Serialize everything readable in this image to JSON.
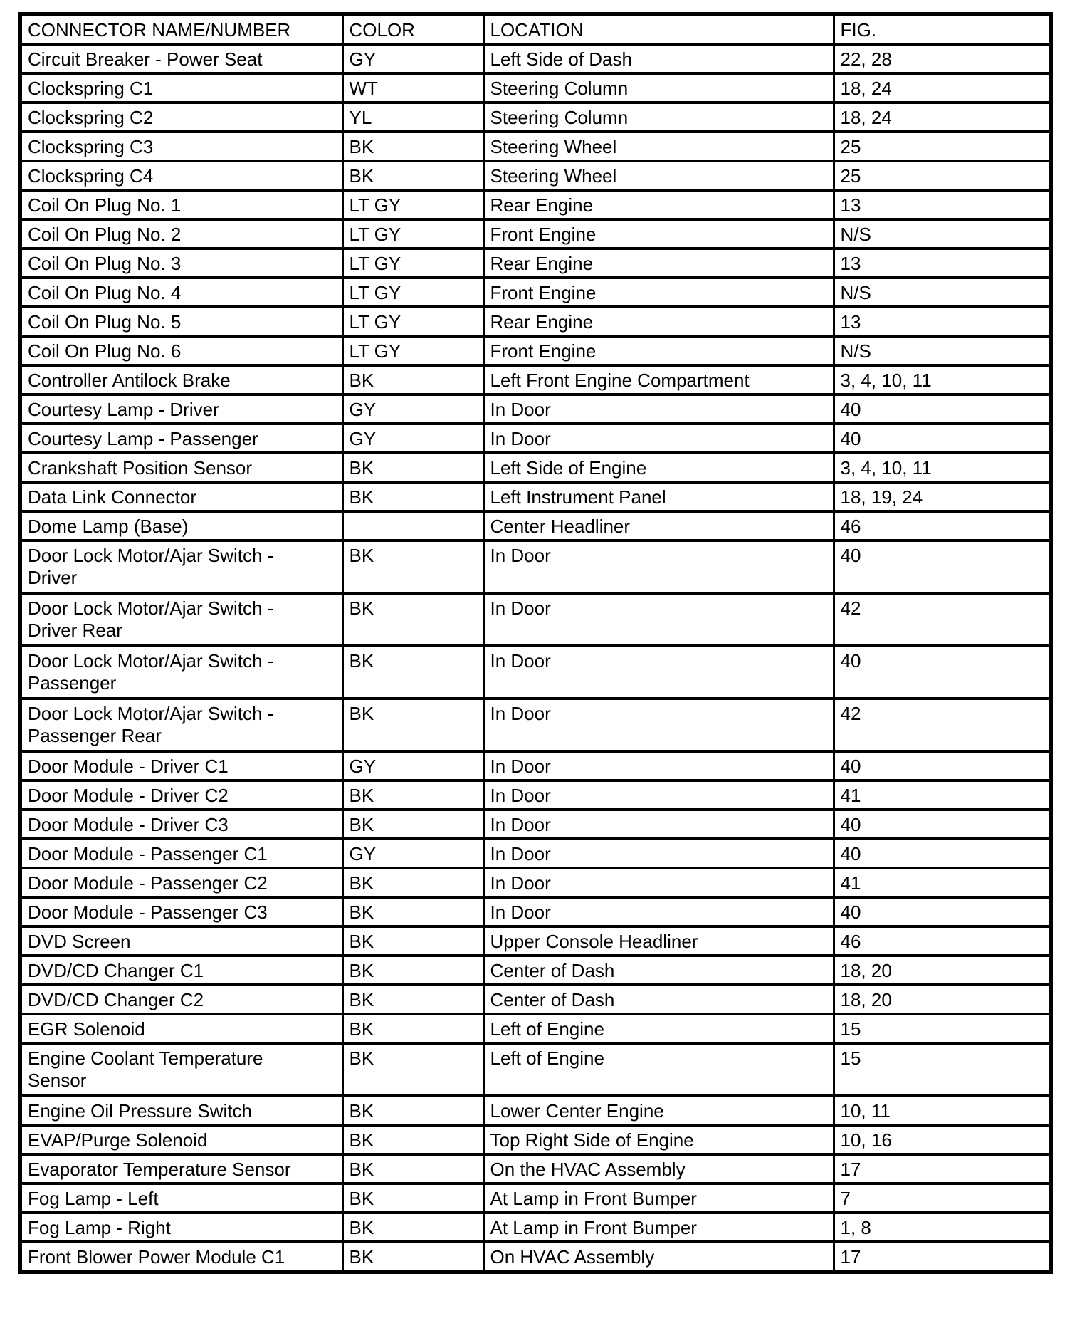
{
  "page": {
    "background_color": "#ffffff",
    "text_color": "#000000",
    "border_color": "#000000"
  },
  "table": {
    "columns": [
      {
        "label": "CONNECTOR NAME/NUMBER"
      },
      {
        "label": "COLOR"
      },
      {
        "label": "LOCATION"
      },
      {
        "label": "FIG."
      }
    ],
    "rows": [
      {
        "name": "Circuit Breaker - Power Seat",
        "color": "GY",
        "location": "Left Side of Dash",
        "fig": "22, 28"
      },
      {
        "name": "Clockspring C1",
        "color": "WT",
        "location": "Steering Column",
        "fig": "18, 24"
      },
      {
        "name": "Clockspring C2",
        "color": "YL",
        "location": "Steering Column",
        "fig": "18, 24"
      },
      {
        "name": "Clockspring C3",
        "color": "BK",
        "location": "Steering Wheel",
        "fig": "25"
      },
      {
        "name": "Clockspring C4",
        "color": "BK",
        "location": "Steering Wheel",
        "fig": "25"
      },
      {
        "name": "Coil On Plug No. 1",
        "color": "LT GY",
        "location": "Rear Engine",
        "fig": "13"
      },
      {
        "name": "Coil On Plug No. 2",
        "color": "LT GY",
        "location": "Front Engine",
        "fig": "N/S"
      },
      {
        "name": "Coil On Plug No. 3",
        "color": "LT GY",
        "location": "Rear Engine",
        "fig": "13"
      },
      {
        "name": "Coil On Plug No. 4",
        "color": "LT GY",
        "location": "Front Engine",
        "fig": "N/S"
      },
      {
        "name": "Coil On Plug No. 5",
        "color": "LT GY",
        "location": "Rear Engine",
        "fig": "13"
      },
      {
        "name": "Coil On Plug No. 6",
        "color": "LT GY",
        "location": "Front Engine",
        "fig": "N/S"
      },
      {
        "name": "Controller Antilock Brake",
        "color": "BK",
        "location": "Left Front Engine Compartment",
        "fig": "3, 4, 10, 11"
      },
      {
        "name": "Courtesy Lamp - Driver",
        "color": "GY",
        "location": "In Door",
        "fig": "40"
      },
      {
        "name": "Courtesy Lamp - Passenger",
        "color": "GY",
        "location": "In Door",
        "fig": "40"
      },
      {
        "name": "Crankshaft Position Sensor",
        "color": "BK",
        "location": "Left Side of Engine",
        "fig": "3, 4, 10, 11"
      },
      {
        "name": "Data Link Connector",
        "color": "BK",
        "location": "Left Instrument Panel",
        "fig": "18, 19, 24"
      },
      {
        "name": "Dome Lamp (Base)",
        "color": "",
        "location": "Center Headliner",
        "fig": "46"
      },
      {
        "name": "Door Lock Motor/Ajar Switch -\nDriver",
        "color": "BK",
        "location": "In Door",
        "fig": "40"
      },
      {
        "name": "Door Lock Motor/Ajar Switch -\nDriver Rear",
        "color": "BK",
        "location": "In Door",
        "fig": "42"
      },
      {
        "name": "Door Lock Motor/Ajar Switch -\nPassenger",
        "color": "BK",
        "location": "In Door",
        "fig": "40"
      },
      {
        "name": "Door Lock Motor/Ajar Switch -\nPassenger Rear",
        "color": "BK",
        "location": "In Door",
        "fig": "42"
      },
      {
        "name": "Door Module - Driver C1",
        "color": "GY",
        "location": "In Door",
        "fig": "40"
      },
      {
        "name": "Door Module - Driver C2",
        "color": "BK",
        "location": "In Door",
        "fig": "41"
      },
      {
        "name": "Door Module - Driver C3",
        "color": "BK",
        "location": "In Door",
        "fig": "40"
      },
      {
        "name": "Door Module - Passenger C1",
        "color": "GY",
        "location": "In Door",
        "fig": "40"
      },
      {
        "name": "Door Module - Passenger C2",
        "color": "BK",
        "location": "In Door",
        "fig": "41"
      },
      {
        "name": "Door Module - Passenger C3",
        "color": "BK",
        "location": "In Door",
        "fig": "40"
      },
      {
        "name": "DVD Screen",
        "color": "BK",
        "location": "Upper Console Headliner",
        "fig": "46"
      },
      {
        "name": "DVD/CD Changer C1",
        "color": "BK",
        "location": "Center of Dash",
        "fig": "18, 20"
      },
      {
        "name": "DVD/CD Changer C2",
        "color": "BK",
        "location": "Center of Dash",
        "fig": "18, 20"
      },
      {
        "name": "EGR Solenoid",
        "color": "BK",
        "location": "Left of Engine",
        "fig": "15"
      },
      {
        "name": "Engine Coolant Temperature\nSensor",
        "color": "BK",
        "location": "Left of Engine",
        "fig": "15"
      },
      {
        "name": "Engine Oil Pressure Switch",
        "color": "BK",
        "location": "Lower Center Engine",
        "fig": "10, 11"
      },
      {
        "name": "EVAP/Purge Solenoid",
        "color": "BK",
        "location": "Top Right Side of Engine",
        "fig": "10, 16"
      },
      {
        "name": "Evaporator Temperature Sensor",
        "color": "BK",
        "location": "On the HVAC Assembly",
        "fig": "17"
      },
      {
        "name": "Fog Lamp - Left",
        "color": "BK",
        "location": "At Lamp in Front Bumper",
        "fig": "7"
      },
      {
        "name": "Fog Lamp - Right",
        "color": "BK",
        "location": "At Lamp in Front Bumper",
        "fig": "1, 8"
      },
      {
        "name": "Front Blower Power Module C1",
        "color": "BK",
        "location": "On HVAC Assembly",
        "fig": "17"
      }
    ]
  }
}
